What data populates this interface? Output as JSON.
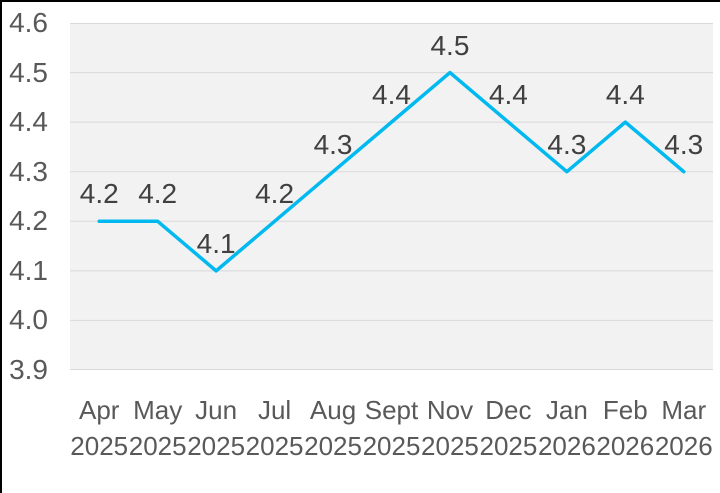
{
  "chart_data": {
    "type": "line",
    "categories": [
      {
        "month": "Apr",
        "year": "2025"
      },
      {
        "month": "May",
        "year": "2025"
      },
      {
        "month": "Jun",
        "year": "2025"
      },
      {
        "month": "Jul",
        "year": "2025"
      },
      {
        "month": "Aug",
        "year": "2025"
      },
      {
        "month": "Sept",
        "year": "2025"
      },
      {
        "month": "Nov",
        "year": "2025"
      },
      {
        "month": "Dec",
        "year": "2025"
      },
      {
        "month": "Jan",
        "year": "2026"
      },
      {
        "month": "Feb",
        "year": "2026"
      },
      {
        "month": "Mar",
        "year": "2026"
      }
    ],
    "values": [
      4.2,
      4.2,
      4.1,
      4.2,
      4.3,
      4.4,
      4.5,
      4.4,
      4.3,
      4.4,
      4.3
    ],
    "data_labels": [
      "4.2",
      "4.2",
      "4.1",
      "4.2",
      "4.3",
      "4.4",
      "4.5",
      "4.4",
      "4.3",
      "4.4",
      "4.3"
    ],
    "y_tick_labels": [
      "4.6",
      "4.5",
      "4.4",
      "4.3",
      "4.2",
      "4.1",
      "4.0",
      "3.9"
    ],
    "y_tick_values": [
      4.6,
      4.5,
      4.4,
      4.3,
      4.2,
      4.1,
      4.0,
      3.9
    ],
    "ylim": [
      3.9,
      4.6
    ],
    "title": "",
    "xlabel": "",
    "ylabel": "",
    "grid": true,
    "legend": false
  },
  "colors": {
    "line": "#00B9F0",
    "plot_background": "#F2F2F2",
    "gridline": "#D9D9D9",
    "axis_text": "#595959",
    "data_label_text": "#404040",
    "frame_border": "#000000"
  }
}
